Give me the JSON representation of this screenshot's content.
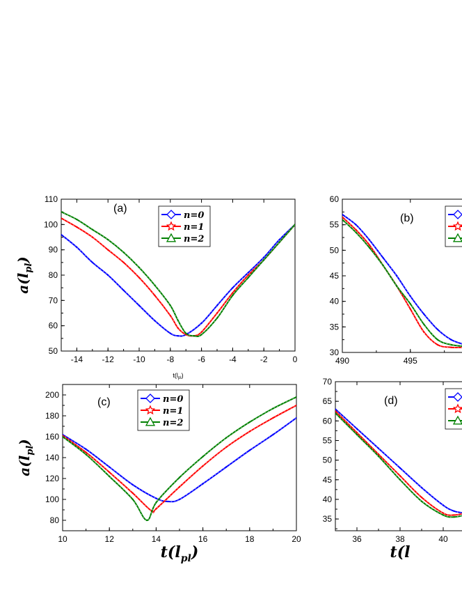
{
  "chart_data": [
    {
      "type": "line",
      "panel_label": "(a)",
      "ylabel_main": "a(l",
      "ylabel_sub": "pl",
      "ylabel_close": ")",
      "xlabel_main": "t(l",
      "xlabel_sub": "pl",
      "xlabel_close": ")",
      "xlim": [
        -15,
        0
      ],
      "ylim": [
        50,
        110
      ],
      "xticks": [
        -14,
        -12,
        -10,
        -8,
        -6,
        -4,
        -2,
        0
      ],
      "yticks": [
        50,
        60,
        70,
        80,
        90,
        100,
        110
      ],
      "legend": "top-right",
      "series": [
        {
          "name": "n=0",
          "color": "#0000ff",
          "marker": "diamond",
          "x": [
            -15,
            -14,
            -13,
            -12,
            -11,
            -10,
            -9,
            -8,
            -7.5,
            -7,
            -6,
            -5,
            -4,
            -3,
            -2,
            -1,
            0
          ],
          "y": [
            96,
            91,
            85,
            80,
            74,
            68,
            62,
            57,
            56,
            56.5,
            61,
            68,
            75,
            81,
            87,
            94,
            100
          ]
        },
        {
          "name": "n=1",
          "color": "#ff0000",
          "marker": "star",
          "x": [
            -15,
            -14,
            -13,
            -12,
            -11,
            -10,
            -9,
            -8,
            -7.5,
            -7,
            -6.5,
            -6,
            -5,
            -4,
            -3,
            -2,
            -1,
            0
          ],
          "y": [
            102.5,
            99,
            95,
            90,
            85,
            79,
            72,
            64,
            59,
            56.5,
            56,
            57.5,
            65,
            73,
            80,
            86,
            93,
            100
          ]
        },
        {
          "name": "n=2",
          "color": "#008000",
          "marker": "triangle",
          "x": [
            -15,
            -14,
            -13,
            -12,
            -11,
            -10,
            -9,
            -8,
            -7.5,
            -7,
            -6.5,
            -6,
            -5,
            -4,
            -3,
            -2,
            -1,
            0
          ],
          "y": [
            105,
            102,
            98,
            94,
            89,
            83,
            76,
            68,
            62,
            57,
            56,
            56.5,
            63,
            72,
            79,
            86,
            93,
            100
          ]
        }
      ]
    },
    {
      "type": "line",
      "panel_label": "(b)",
      "xlim": [
        490,
        499
      ],
      "ylim": [
        30,
        60
      ],
      "xticks": [
        490,
        495
      ],
      "yticks": [
        30,
        35,
        40,
        45,
        50,
        55,
        60
      ],
      "legend": "top-right",
      "series": [
        {
          "name": "n=0",
          "color": "#0000ff",
          "marker": "diamond",
          "x": [
            490,
            491,
            492,
            493,
            494,
            495,
            496,
            497,
            498,
            499
          ],
          "y": [
            57,
            55,
            52,
            48.5,
            45,
            41,
            37.5,
            34.5,
            32.5,
            31.5
          ]
        },
        {
          "name": "n=1",
          "color": "#ff0000",
          "marker": "star",
          "x": [
            490,
            491,
            492,
            493,
            494,
            495,
            496,
            497,
            498,
            499
          ],
          "y": [
            56.5,
            54,
            51,
            47,
            43,
            38.5,
            34,
            31.5,
            31,
            31
          ]
        },
        {
          "name": "n=2",
          "color": "#008000",
          "marker": "triangle",
          "x": [
            490,
            491,
            492,
            493,
            494,
            495,
            496,
            497,
            498,
            499
          ],
          "y": [
            56,
            53.5,
            50.5,
            47,
            43,
            39.5,
            35.5,
            32.5,
            31.5,
            31.2
          ]
        }
      ]
    },
    {
      "type": "line",
      "panel_label": "(c)",
      "ylabel_main": "a(l",
      "ylabel_sub": "pl",
      "ylabel_close": ")",
      "xlabel_main": "t(l",
      "xlabel_sub": "pl",
      "xlabel_close": ")",
      "xlim": [
        10,
        20
      ],
      "ylim": [
        70,
        210
      ],
      "xticks": [
        10,
        12,
        14,
        16,
        18,
        20
      ],
      "yticks": [
        80,
        100,
        120,
        140,
        160,
        180,
        200
      ],
      "legend": "top-right",
      "series": [
        {
          "name": "n=0",
          "color": "#0000ff",
          "marker": "diamond",
          "x": [
            10,
            11,
            12,
            13,
            14,
            14.5,
            15,
            16,
            17,
            18,
            19,
            20
          ],
          "y": [
            162,
            148,
            131,
            114,
            101,
            98,
            100,
            115,
            131,
            147,
            162,
            178
          ]
        },
        {
          "name": "n=1",
          "color": "#ff0000",
          "marker": "star",
          "x": [
            10,
            11,
            12,
            13,
            13.8,
            14,
            15,
            16,
            17,
            18,
            19,
            20
          ],
          "y": [
            161,
            145,
            126,
            106,
            89,
            91,
            112,
            132,
            150,
            165,
            178,
            190
          ]
        },
        {
          "name": "n=2",
          "color": "#008000",
          "marker": "triangle",
          "x": [
            10,
            11,
            12,
            13,
            13.6,
            14,
            15,
            16,
            17,
            18,
            19,
            20
          ],
          "y": [
            160,
            143,
            122,
            100,
            80,
            97,
            121,
            141,
            159,
            174,
            187,
            198
          ]
        }
      ]
    },
    {
      "type": "line",
      "panel_label": "(d)",
      "xlabel_main": "t(l",
      "xlim": [
        35,
        41
      ],
      "ylim": [
        32,
        70
      ],
      "xticks": [
        36,
        38,
        40
      ],
      "yticks": [
        35,
        40,
        45,
        50,
        55,
        60,
        65,
        70
      ],
      "legend": "top-right",
      "series": [
        {
          "name": "n=0",
          "color": "#0000ff",
          "marker": "diamond",
          "x": [
            35,
            36,
            37,
            38,
            39,
            40,
            40.5,
            41
          ],
          "y": [
            63,
            58,
            53,
            48,
            43,
            38.5,
            37,
            36.5
          ]
        },
        {
          "name": "n=1",
          "color": "#ff0000",
          "marker": "star",
          "x": [
            35,
            36,
            37,
            38,
            39,
            40,
            40.5,
            41
          ],
          "y": [
            62.5,
            57,
            51.5,
            46,
            40.5,
            36.5,
            36,
            36.5
          ]
        },
        {
          "name": "n=2",
          "color": "#008000",
          "marker": "triangle",
          "x": [
            35,
            36,
            37,
            38,
            39,
            40,
            40.5,
            41
          ],
          "y": [
            62,
            56.5,
            51,
            45,
            39.5,
            36,
            35.5,
            36
          ]
        }
      ]
    }
  ],
  "small_xlabel": {
    "main": "t(l",
    "sub": "pl",
    "close": ")"
  }
}
